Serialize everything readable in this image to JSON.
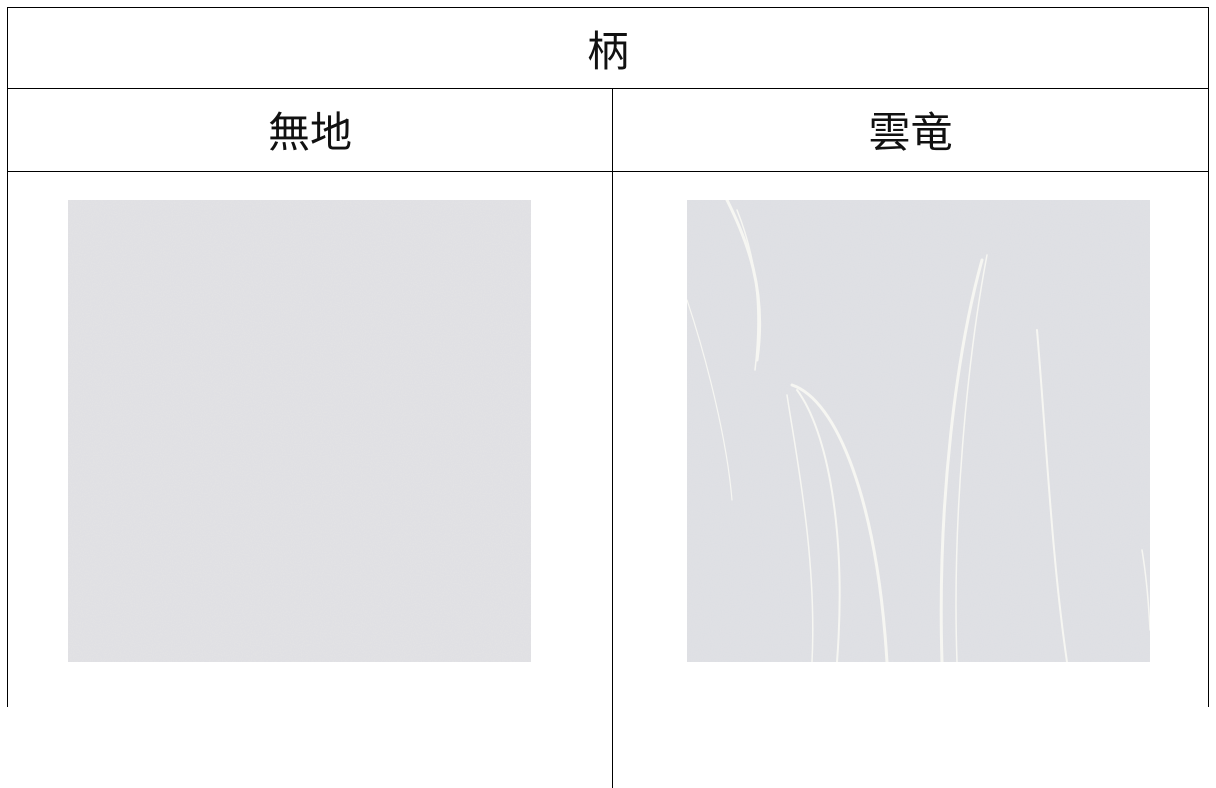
{
  "table": {
    "header": "柄",
    "columns": [
      "無地",
      "雲竜"
    ]
  }
}
